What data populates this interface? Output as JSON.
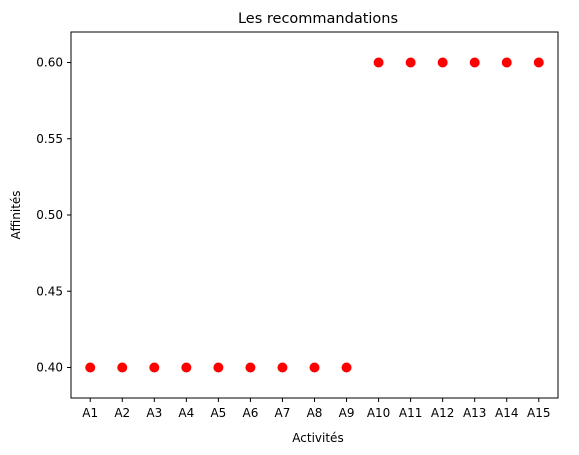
{
  "chart_data": {
    "type": "scatter",
    "title": "Les recommandations",
    "xlabel": "Activités",
    "ylabel": "Affinités",
    "categories": [
      "A1",
      "A2",
      "A3",
      "A4",
      "A5",
      "A6",
      "A7",
      "A8",
      "A9",
      "A10",
      "A11",
      "A12",
      "A13",
      "A14",
      "A15"
    ],
    "values": [
      0.4,
      0.4,
      0.4,
      0.4,
      0.4,
      0.4,
      0.4,
      0.4,
      0.4,
      0.6,
      0.6,
      0.6,
      0.6,
      0.6,
      0.6
    ],
    "ylim": [
      0.38,
      0.62
    ],
    "yticks": [
      "0.40",
      "0.45",
      "0.50",
      "0.55",
      "0.60"
    ],
    "marker_color": "#ff0000",
    "grid": false
  }
}
